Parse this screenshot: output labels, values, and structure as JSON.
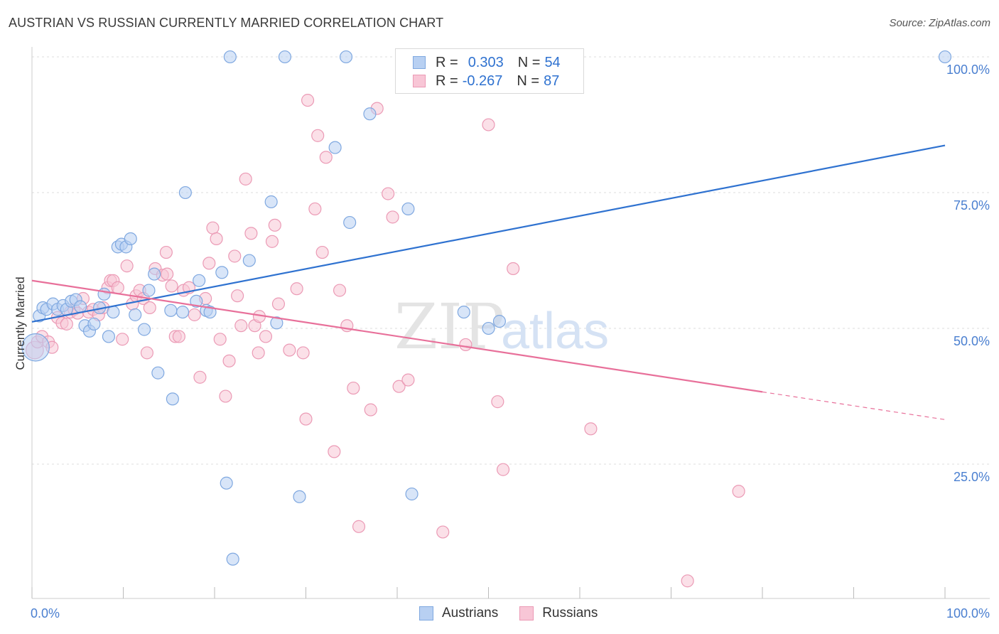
{
  "title": "AUSTRIAN VS RUSSIAN CURRENTLY MARRIED CORRELATION CHART",
  "source": "Source: ZipAtlas.com",
  "watermark": {
    "zip": "ZIP",
    "atlas": "atlas"
  },
  "legend": {
    "austrians": {
      "r_label": "R =",
      "r_value": "0.303",
      "n_label": "N =",
      "n_value": "54"
    },
    "russians": {
      "r_label": "R =",
      "r_value": "-0.267",
      "n_label": "N =",
      "n_value": "87"
    }
  },
  "bottom_legend": {
    "austrians": "Austrians",
    "russians": "Russians"
  },
  "colors": {
    "austrian_fill": "#b8d0f2",
    "austrian_stroke": "#7fa8e0",
    "austrian_line": "#2f72d0",
    "russian_fill": "#f8c6d6",
    "russian_stroke": "#eb9ab5",
    "russian_line": "#e8709a",
    "axis_label": "#4a7fd0",
    "grid": "#dddddd"
  },
  "chart_data": {
    "type": "scatter",
    "title": "AUSTRIAN VS RUSSIAN CURRENTLY MARRIED CORRELATION CHART",
    "xlabel": "",
    "ylabel": "Currently Married",
    "xlim": [
      0,
      100
    ],
    "ylim": [
      0,
      102
    ],
    "x_tick_labels": [
      {
        "value": 0,
        "label": "0.0%"
      },
      {
        "value": 100,
        "label": "100.0%"
      }
    ],
    "y_tick_labels": [
      {
        "value": 25,
        "label": "25.0%"
      },
      {
        "value": 50,
        "label": "50.0%"
      },
      {
        "value": 75,
        "label": "75.0%"
      },
      {
        "value": 100,
        "label": "100.0%"
      }
    ],
    "series": [
      {
        "name": "Austrians",
        "points": [
          [
            0.8,
            52.3
          ],
          [
            1.2,
            53.8
          ],
          [
            1.6,
            53.5
          ],
          [
            2.3,
            54.5
          ],
          [
            2.8,
            53.5
          ],
          [
            3.4,
            54.2
          ],
          [
            3.8,
            53.5
          ],
          [
            4.3,
            55.0
          ],
          [
            4.8,
            55.3
          ],
          [
            5.3,
            54.0
          ],
          [
            5.8,
            50.5
          ],
          [
            6.3,
            49.5
          ],
          [
            6.8,
            50.8
          ],
          [
            7.4,
            53.8
          ],
          [
            7.9,
            56.3
          ],
          [
            8.4,
            48.5
          ],
          [
            8.9,
            53.0
          ],
          [
            9.4,
            65.0
          ],
          [
            9.8,
            65.5
          ],
          [
            10.3,
            65.0
          ],
          [
            10.8,
            66.5
          ],
          [
            11.3,
            52.5
          ],
          [
            12.3,
            49.8
          ],
          [
            12.8,
            57.0
          ],
          [
            13.4,
            60.0
          ],
          [
            13.8,
            41.8
          ],
          [
            15.2,
            53.3
          ],
          [
            15.4,
            37.0
          ],
          [
            16.5,
            53.0
          ],
          [
            16.8,
            75.0
          ],
          [
            18.0,
            55.0
          ],
          [
            18.3,
            58.8
          ],
          [
            19.1,
            53.3
          ],
          [
            19.5,
            53.0
          ],
          [
            20.8,
            60.3
          ],
          [
            21.3,
            21.5
          ],
          [
            21.7,
            100.0
          ],
          [
            22.0,
            7.5
          ],
          [
            23.8,
            62.5
          ],
          [
            26.2,
            73.3
          ],
          [
            26.8,
            51.0
          ],
          [
            27.7,
            100.0
          ],
          [
            29.3,
            19.0
          ],
          [
            33.2,
            83.3
          ],
          [
            34.4,
            100.0
          ],
          [
            34.8,
            69.5
          ],
          [
            37.0,
            89.5
          ],
          [
            41.2,
            72.0
          ],
          [
            41.6,
            19.5
          ],
          [
            47.3,
            53.0
          ],
          [
            50.0,
            50.0
          ],
          [
            51.2,
            51.3
          ],
          [
            100.0,
            100.0
          ],
          [
            0.4,
            46.5
          ]
        ],
        "sizes": [
          22,
          22,
          22,
          22,
          22,
          22,
          22,
          22,
          22,
          22,
          22,
          22,
          22,
          22,
          22,
          22,
          22,
          22,
          22,
          22,
          22,
          22,
          22,
          22,
          22,
          22,
          22,
          22,
          22,
          22,
          22,
          22,
          22,
          22,
          22,
          22,
          22,
          22,
          22,
          22,
          22,
          22,
          22,
          22,
          22,
          22,
          22,
          22,
          22,
          22,
          22,
          22,
          22,
          50
        ],
        "trend": {
          "x0": 0,
          "y0": 51.2,
          "x1": 100,
          "y1": 83.7
        }
      },
      {
        "name": "Russians",
        "points": [
          [
            0.3,
            46.0
          ],
          [
            0.6,
            47.5
          ],
          [
            1.1,
            48.5
          ],
          [
            1.8,
            47.5
          ],
          [
            2.2,
            46.5
          ],
          [
            2.8,
            52.0
          ],
          [
            3.3,
            51.0
          ],
          [
            3.8,
            50.8
          ],
          [
            4.2,
            53.0
          ],
          [
            4.6,
            53.5
          ],
          [
            5.0,
            52.8
          ],
          [
            5.6,
            55.5
          ],
          [
            6.2,
            53.0
          ],
          [
            6.7,
            53.5
          ],
          [
            7.3,
            52.5
          ],
          [
            7.8,
            53.8
          ],
          [
            8.3,
            57.5
          ],
          [
            8.6,
            58.8
          ],
          [
            8.9,
            58.8
          ],
          [
            9.4,
            57.5
          ],
          [
            9.9,
            48.0
          ],
          [
            10.4,
            61.5
          ],
          [
            11.0,
            54.5
          ],
          [
            11.4,
            56.0
          ],
          [
            11.8,
            57.0
          ],
          [
            12.2,
            55.5
          ],
          [
            12.6,
            45.5
          ],
          [
            12.9,
            53.8
          ],
          [
            13.5,
            61.0
          ],
          [
            14.3,
            59.8
          ],
          [
            14.7,
            64.0
          ],
          [
            15.3,
            57.8
          ],
          [
            15.7,
            48.5
          ],
          [
            16.1,
            48.5
          ],
          [
            16.6,
            57.0
          ],
          [
            17.2,
            57.5
          ],
          [
            17.8,
            52.5
          ],
          [
            18.4,
            41.0
          ],
          [
            19.0,
            55.5
          ],
          [
            19.4,
            62.0
          ],
          [
            19.8,
            68.5
          ],
          [
            20.2,
            66.5
          ],
          [
            20.6,
            48.0
          ],
          [
            21.2,
            37.5
          ],
          [
            21.6,
            44.0
          ],
          [
            22.2,
            63.3
          ],
          [
            22.5,
            56.0
          ],
          [
            22.9,
            50.5
          ],
          [
            23.4,
            77.5
          ],
          [
            24.0,
            67.5
          ],
          [
            24.4,
            50.5
          ],
          [
            24.8,
            45.5
          ],
          [
            25.6,
            48.5
          ],
          [
            26.3,
            66.0
          ],
          [
            26.6,
            69.0
          ],
          [
            27.0,
            54.5
          ],
          [
            28.2,
            46.0
          ],
          [
            29.0,
            57.3
          ],
          [
            29.7,
            45.5
          ],
          [
            30.0,
            33.3
          ],
          [
            31.0,
            72.0
          ],
          [
            31.3,
            85.5
          ],
          [
            31.8,
            64.0
          ],
          [
            32.2,
            81.5
          ],
          [
            33.1,
            27.3
          ],
          [
            33.7,
            57.0
          ],
          [
            34.5,
            50.5
          ],
          [
            35.2,
            39.0
          ],
          [
            35.8,
            13.5
          ],
          [
            37.1,
            35.0
          ],
          [
            37.8,
            90.5
          ],
          [
            39.0,
            74.8
          ],
          [
            39.5,
            70.5
          ],
          [
            40.2,
            39.3
          ],
          [
            41.2,
            40.5
          ],
          [
            45.0,
            12.5
          ],
          [
            47.5,
            47.0
          ],
          [
            50.0,
            87.5
          ],
          [
            51.0,
            36.5
          ],
          [
            51.6,
            24.0
          ],
          [
            52.7,
            61.0
          ],
          [
            61.2,
            31.5
          ],
          [
            71.8,
            3.5
          ],
          [
            77.4,
            20.0
          ],
          [
            30.2,
            92.0
          ],
          [
            24.9,
            52.2
          ],
          [
            14.8,
            60.0
          ]
        ],
        "sizes": [
          32,
          22,
          22,
          22,
          22,
          22,
          22,
          22,
          22,
          22,
          22,
          22,
          22,
          22,
          22,
          22,
          22,
          22,
          22,
          22,
          22,
          22,
          22,
          22,
          22,
          22,
          22,
          22,
          22,
          22,
          22,
          22,
          22,
          22,
          22,
          22,
          22,
          22,
          22,
          22,
          22,
          22,
          22,
          22,
          22,
          22,
          22,
          22,
          22,
          22,
          22,
          22,
          22,
          22,
          22,
          22,
          22,
          22,
          22,
          22,
          22,
          22,
          22,
          22,
          22,
          22,
          22,
          22,
          22,
          22,
          22,
          22,
          22,
          22,
          22,
          22,
          22,
          22,
          22,
          22,
          22,
          22,
          22,
          22,
          22,
          22,
          22
        ],
        "trend": {
          "x0": 0,
          "y0": 58.8,
          "x1": 80,
          "y1": 38.3,
          "dashed_to_x": 100,
          "dashed_to_y": 33.2
        }
      }
    ]
  }
}
